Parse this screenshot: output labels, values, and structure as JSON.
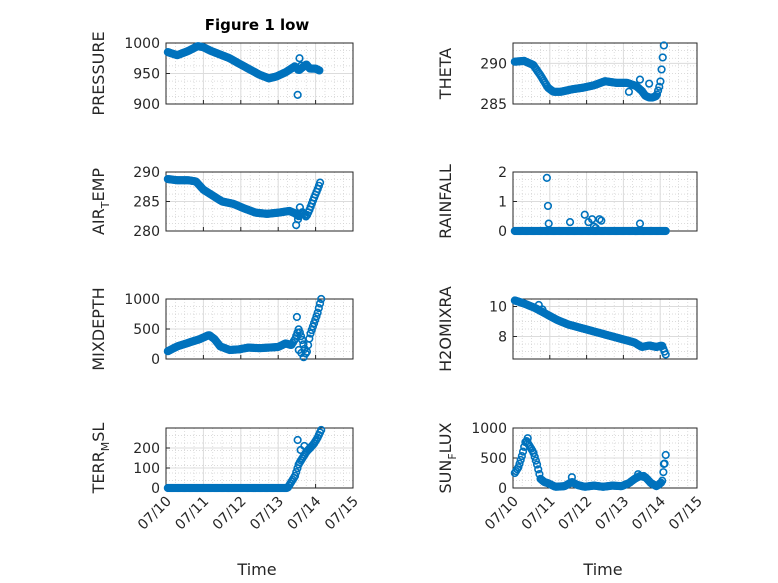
{
  "figure": {
    "title": "Figure 1 low",
    "x_tick_labels": [
      "07/10",
      "07/11",
      "07/12",
      "07/13",
      "07/14",
      "07/15"
    ],
    "xlabel": "Time"
  },
  "chart_data": [
    {
      "type": "scatter",
      "ylabel": "PRESSURE",
      "ylim": [
        900,
        1000
      ],
      "yticks": [
        900,
        950,
        1000
      ],
      "xlim": [
        0,
        5
      ],
      "x_ticks": [
        "07/10",
        "07/11",
        "07/12",
        "07/13",
        "07/14",
        "07/15"
      ],
      "grid": true,
      "marker": "circle",
      "color": "#0072BD",
      "keypoints": {
        "x": [
          0.05,
          0.3,
          0.6,
          0.85,
          1.0,
          1.2,
          1.45,
          1.7,
          1.9,
          2.2,
          2.5,
          2.75,
          2.95,
          3.2,
          3.35,
          3.45,
          3.55,
          3.65,
          3.75,
          3.85,
          4.0,
          4.1
        ],
        "y": [
          985,
          980,
          987,
          995,
          993,
          987,
          981,
          975,
          968,
          958,
          948,
          942,
          945,
          952,
          958,
          962,
          955,
          960,
          965,
          958,
          958,
          955
        ]
      },
      "extras": {
        "x": [
          3.52,
          3.57,
          3.62
        ],
        "y": [
          915,
          975,
          963
        ]
      }
    },
    {
      "type": "scatter",
      "ylabel": "THETA",
      "ylim": [
        285,
        292.5
      ],
      "yticks": [
        285,
        290
      ],
      "xlim": [
        0,
        5
      ],
      "x_ticks": [
        "07/10",
        "07/11",
        "07/12",
        "07/13",
        "07/14",
        "07/15"
      ],
      "grid": true,
      "marker": "circle",
      "color": "#0072BD",
      "keypoints": {
        "x": [
          0.05,
          0.3,
          0.55,
          0.75,
          0.95,
          1.1,
          1.3,
          1.6,
          1.9,
          2.2,
          2.5,
          2.8,
          3.1,
          3.35,
          3.5,
          3.6,
          3.7,
          3.8,
          3.9,
          4.0,
          4.1
        ],
        "y": [
          290.2,
          290.3,
          289.8,
          288.5,
          287.0,
          286.5,
          286.5,
          286.8,
          287.0,
          287.3,
          287.8,
          287.6,
          287.6,
          287.2,
          286.6,
          286.0,
          285.8,
          285.8,
          286.0,
          287.5,
          292.2
        ]
      },
      "extras": {
        "x": [
          3.15,
          3.45,
          3.7
        ],
        "y": [
          286.5,
          288.0,
          287.5
        ]
      }
    },
    {
      "type": "scatter",
      "ylabel": "AIR_TEMP",
      "ylim": [
        280,
        290
      ],
      "yticks": [
        280,
        285,
        290
      ],
      "xlim": [
        0,
        5
      ],
      "x_ticks": [
        "07/10",
        "07/11",
        "07/12",
        "07/13",
        "07/14",
        "07/15"
      ],
      "grid": true,
      "marker": "circle",
      "color": "#0072BD",
      "keypoints": {
        "x": [
          0.05,
          0.3,
          0.6,
          0.8,
          1.0,
          1.25,
          1.5,
          1.8,
          2.1,
          2.4,
          2.7,
          3.0,
          3.3,
          3.45,
          3.55,
          3.65,
          3.75,
          3.85,
          3.95,
          4.05,
          4.12
        ],
        "y": [
          288.8,
          288.6,
          288.6,
          288.4,
          287.0,
          286.0,
          285.0,
          284.6,
          283.8,
          283.1,
          282.9,
          283.1,
          283.4,
          283.0,
          282.5,
          283.2,
          282.4,
          283.8,
          285.5,
          287.0,
          288.2
        ]
      },
      "extras": {
        "x": [
          3.48,
          3.53,
          3.58
        ],
        "y": [
          281.0,
          282.0,
          284.0
        ]
      }
    },
    {
      "type": "scatter",
      "ylabel": "RAINFALL",
      "ylim": [
        0,
        2
      ],
      "yticks": [
        0,
        1,
        2
      ],
      "xlim": [
        0,
        5
      ],
      "x_ticks": [
        "07/10",
        "07/11",
        "07/12",
        "07/13",
        "07/14",
        "07/15"
      ],
      "grid": true,
      "marker": "circle",
      "color": "#0072BD",
      "keypoints": {
        "x": [
          0.05,
          4.15
        ],
        "y": [
          0,
          0
        ]
      },
      "extras": {
        "x": [
          0.92,
          0.95,
          0.97,
          1.55,
          1.95,
          2.05,
          2.15,
          2.2,
          2.25,
          2.35,
          2.4,
          3.45
        ],
        "y": [
          1.8,
          0.85,
          0.25,
          0.3,
          0.55,
          0.3,
          0.4,
          0.15,
          0.1,
          0.4,
          0.35,
          0.25
        ]
      }
    },
    {
      "type": "scatter",
      "ylabel": "MIXDEPTH",
      "ylim": [
        0,
        1000
      ],
      "yticks": [
        0,
        500,
        1000
      ],
      "xlim": [
        0,
        5
      ],
      "x_ticks": [
        "07/10",
        "07/11",
        "07/12",
        "07/13",
        "07/14",
        "07/15"
      ],
      "grid": true,
      "marker": "circle",
      "color": "#0072BD",
      "keypoints": {
        "x": [
          0.05,
          0.3,
          0.6,
          0.9,
          1.15,
          1.3,
          1.45,
          1.7,
          1.95,
          2.2,
          2.5,
          2.75,
          3.0,
          3.2,
          3.35,
          3.45,
          3.55,
          3.65,
          3.75,
          3.85,
          3.95,
          4.05,
          4.15
        ],
        "y": [
          130,
          210,
          270,
          330,
          400,
          330,
          210,
          150,
          160,
          190,
          180,
          190,
          200,
          260,
          230,
          330,
          500,
          300,
          60,
          400,
          580,
          760,
          1000
        ]
      },
      "extras": {
        "x": [
          3.5,
          3.55,
          3.62,
          3.68
        ],
        "y": [
          700,
          150,
          100,
          30
        ]
      }
    },
    {
      "type": "scatter",
      "ylabel": "H2OMIXRA",
      "ylim": [
        6.5,
        10.5
      ],
      "yticks": [
        8,
        10
      ],
      "xlim": [
        0,
        5
      ],
      "x_ticks": [
        "07/10",
        "07/11",
        "07/12",
        "07/13",
        "07/14",
        "07/15"
      ],
      "grid": true,
      "marker": "circle",
      "color": "#0072BD",
      "keypoints": {
        "x": [
          0.05,
          0.3,
          0.6,
          0.9,
          1.2,
          1.5,
          1.8,
          2.1,
          2.4,
          2.7,
          3.0,
          3.3,
          3.5,
          3.7,
          3.9,
          4.05,
          4.15
        ],
        "y": [
          10.4,
          10.2,
          9.9,
          9.5,
          9.1,
          8.8,
          8.6,
          8.4,
          8.2,
          8.0,
          7.8,
          7.6,
          7.3,
          7.4,
          7.3,
          7.4,
          6.8
        ]
      },
      "extras": {
        "x": [
          0.7,
          0.8
        ],
        "y": [
          10.1,
          9.8
        ]
      }
    },
    {
      "type": "scatter",
      "ylabel": "TERR_MSL",
      "ylim": [
        0,
        300
      ],
      "yticks": [
        0,
        100,
        200
      ],
      "xlim": [
        0,
        5
      ],
      "x_ticks": [
        "07/10",
        "07/11",
        "07/12",
        "07/13",
        "07/14",
        "07/15"
      ],
      "grid": true,
      "marker": "circle",
      "color": "#0072BD",
      "keypoints": {
        "x": [
          0.05,
          3.25,
          3.45,
          3.55,
          3.65,
          3.75,
          3.85,
          3.95,
          4.05,
          4.15
        ],
        "y": [
          0,
          0,
          60,
          120,
          150,
          180,
          200,
          220,
          250,
          290
        ]
      },
      "extras": {
        "x": [
          3.52,
          3.6,
          3.7
        ],
        "y": [
          240,
          190,
          210
        ]
      }
    },
    {
      "type": "scatter",
      "ylabel": "SUN_FLUX",
      "ylim": [
        0,
        1000
      ],
      "yticks": [
        0,
        500,
        1000
      ],
      "xlim": [
        0,
        5
      ],
      "x_ticks": [
        "07/10",
        "07/11",
        "07/12",
        "07/13",
        "07/14",
        "07/15"
      ],
      "grid": true,
      "marker": "circle",
      "color": "#0072BD",
      "keypoints": {
        "x": [
          0.05,
          0.15,
          0.25,
          0.35,
          0.45,
          0.55,
          0.65,
          0.75,
          0.85,
          0.95,
          1.15,
          1.4,
          1.6,
          1.75,
          1.95,
          2.2,
          2.45,
          2.7,
          2.95,
          3.15,
          3.3,
          3.45,
          3.6,
          3.75,
          3.9,
          4.05,
          4.15
        ],
        "y": [
          250,
          350,
          550,
          800,
          700,
          600,
          400,
          150,
          100,
          80,
          20,
          30,
          100,
          50,
          20,
          40,
          20,
          40,
          30,
          80,
          150,
          200,
          180,
          80,
          30,
          100,
          550
        ]
      },
      "extras": {
        "x": [
          0.4,
          1.6,
          3.4,
          3.55,
          4.1
        ],
        "y": [
          830,
          180,
          230,
          200,
          400
        ]
      }
    }
  ]
}
